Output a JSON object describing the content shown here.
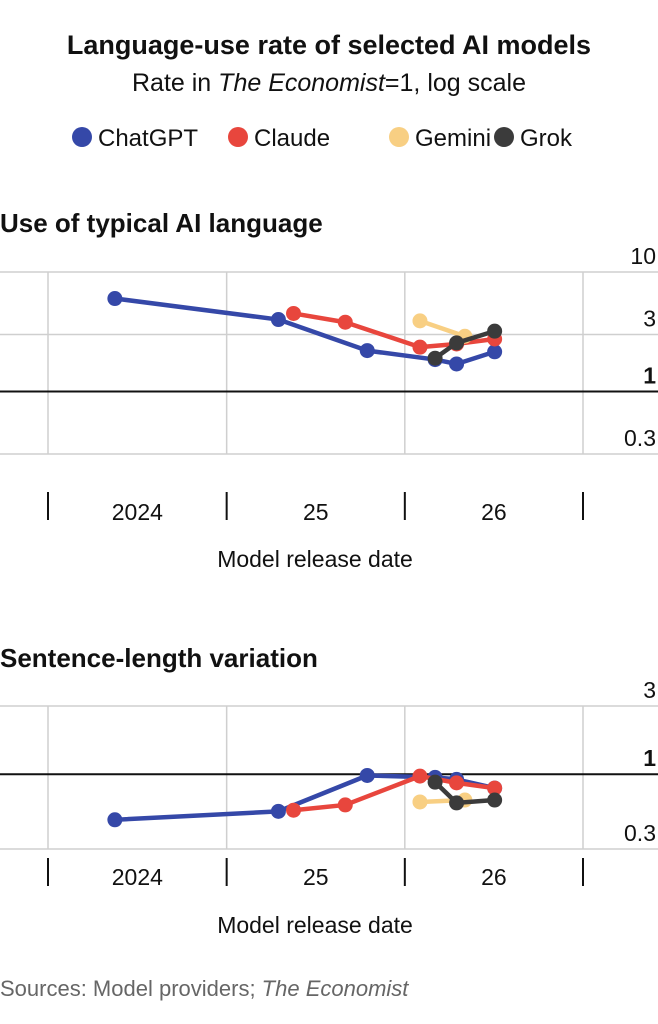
{
  "title": "Language-use rate of selected AI models",
  "subtitle": {
    "prefix": "Rate in ",
    "italic": "The Economist",
    "suffix": "=1, log scale"
  },
  "source": {
    "prefix": "Sources: Model providers; ",
    "italic": "The Economist"
  },
  "colors": {
    "ChatGPT": "#3548a8",
    "Claude": "#e8463d",
    "Gemini": "#f8cf83",
    "Grok": "#3b3b3b",
    "grid": "#cfcfcf",
    "baseline": "#111111"
  },
  "chart_data": [
    {
      "type": "line",
      "title": "Use of typical AI language",
      "xlabel": "Model release date",
      "ylabel": "",
      "yscale": "log",
      "ylim": [
        0.3,
        10
      ],
      "yticks": [
        "10",
        "3",
        "1",
        "0.3"
      ],
      "ytick_values": [
        10,
        3,
        1,
        0.3
      ],
      "baseline": 1,
      "xlim": [
        "2023-07-01",
        "2026-07-01"
      ],
      "xticks": [
        "2024",
        "25",
        "26"
      ],
      "xtick_dates": [
        "2024-01-01",
        "2025-01-01",
        "2026-01-01"
      ],
      "xtick_bounds": [
        "2023-07-01",
        "2024-07-01",
        "2025-07-01",
        "2026-07-01"
      ],
      "legend_position": "top",
      "series": [
        {
          "name": "ChatGPT",
          "points": [
            [
              "2023-11-15",
              6.0
            ],
            [
              "2024-10-15",
              4.0
            ],
            [
              "2025-04-15",
              2.2
            ],
            [
              "2025-09-01",
              1.85
            ],
            [
              "2025-10-15",
              1.7
            ],
            [
              "2026-01-01",
              2.15
            ]
          ]
        },
        {
          "name": "Claude",
          "points": [
            [
              "2024-11-15",
              4.5
            ],
            [
              "2025-03-01",
              3.8
            ],
            [
              "2025-08-01",
              2.35
            ],
            [
              "2025-10-15",
              2.5
            ],
            [
              "2026-01-01",
              2.75
            ]
          ]
        },
        {
          "name": "Gemini",
          "points": [
            [
              "2025-08-01",
              3.9
            ],
            [
              "2025-11-01",
              2.9
            ]
          ]
        },
        {
          "name": "Grok",
          "points": [
            [
              "2025-09-01",
              1.9
            ],
            [
              "2025-10-15",
              2.55
            ],
            [
              "2026-01-01",
              3.2
            ]
          ]
        }
      ]
    },
    {
      "type": "line",
      "title": "Sentence-length variation",
      "xlabel": "Model release date",
      "ylabel": "",
      "yscale": "log",
      "ylim": [
        0.3,
        3
      ],
      "yticks": [
        "3",
        "1",
        "0.3"
      ],
      "ytick_values": [
        3,
        1,
        0.3
      ],
      "baseline": 1,
      "xlim": [
        "2023-07-01",
        "2026-07-01"
      ],
      "xticks": [
        "2024",
        "25",
        "26"
      ],
      "xtick_dates": [
        "2024-01-01",
        "2025-01-01",
        "2026-01-01"
      ],
      "xtick_bounds": [
        "2023-07-01",
        "2024-07-01",
        "2025-07-01",
        "2026-07-01"
      ],
      "series": [
        {
          "name": "ChatGPT",
          "points": [
            [
              "2023-11-15",
              0.48
            ],
            [
              "2024-10-15",
              0.55
            ],
            [
              "2025-04-15",
              0.98
            ],
            [
              "2025-09-01",
              0.95
            ],
            [
              "2025-10-15",
              0.92
            ],
            [
              "2026-01-01",
              0.8
            ]
          ]
        },
        {
          "name": "Claude",
          "points": [
            [
              "2024-11-15",
              0.56
            ],
            [
              "2025-03-01",
              0.61
            ],
            [
              "2025-08-01",
              0.97
            ],
            [
              "2025-10-15",
              0.87
            ],
            [
              "2026-01-01",
              0.8
            ]
          ]
        },
        {
          "name": "Gemini",
          "points": [
            [
              "2025-08-01",
              0.64
            ],
            [
              "2025-11-01",
              0.66
            ]
          ]
        },
        {
          "name": "Grok",
          "points": [
            [
              "2025-09-01",
              0.88
            ],
            [
              "2025-10-15",
              0.63
            ],
            [
              "2026-01-01",
              0.66
            ]
          ]
        }
      ]
    }
  ]
}
